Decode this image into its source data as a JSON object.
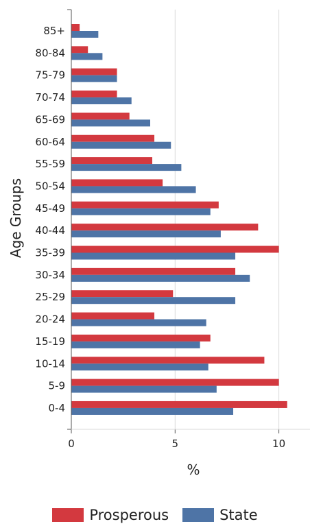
{
  "chart_data": {
    "type": "bar",
    "orientation": "horizontal",
    "ylabel": "Age Groups",
    "xlabel": "%",
    "categories": [
      "85+",
      "80-84",
      "75-79",
      "70-74",
      "65-69",
      "60-64",
      "55-59",
      "50-54",
      "45-49",
      "40-44",
      "35-39",
      "30-34",
      "25-29",
      "20-24",
      "15-19",
      "10-14",
      "5-9",
      "0-4"
    ],
    "series": [
      {
        "name": "Prosperous",
        "color": "#d3393f",
        "values": [
          0.4,
          0.8,
          2.2,
          2.2,
          2.8,
          4.0,
          3.9,
          4.4,
          7.1,
          9.0,
          10.0,
          7.9,
          4.9,
          4.0,
          6.7,
          9.3,
          10.0,
          10.4
        ]
      },
      {
        "name": "State",
        "color": "#4e74a6",
        "values": [
          1.3,
          1.5,
          2.2,
          2.9,
          3.8,
          4.8,
          5.3,
          6.0,
          6.7,
          7.2,
          7.9,
          8.6,
          7.9,
          6.5,
          6.2,
          6.6,
          7.0,
          7.8
        ]
      }
    ],
    "xlim": [
      0,
      11.5
    ],
    "xticks": [
      "0",
      "5",
      "10"
    ],
    "xtick_values": [
      0,
      5,
      10
    ],
    "grid": "vertical",
    "legend_position": "bottom"
  }
}
